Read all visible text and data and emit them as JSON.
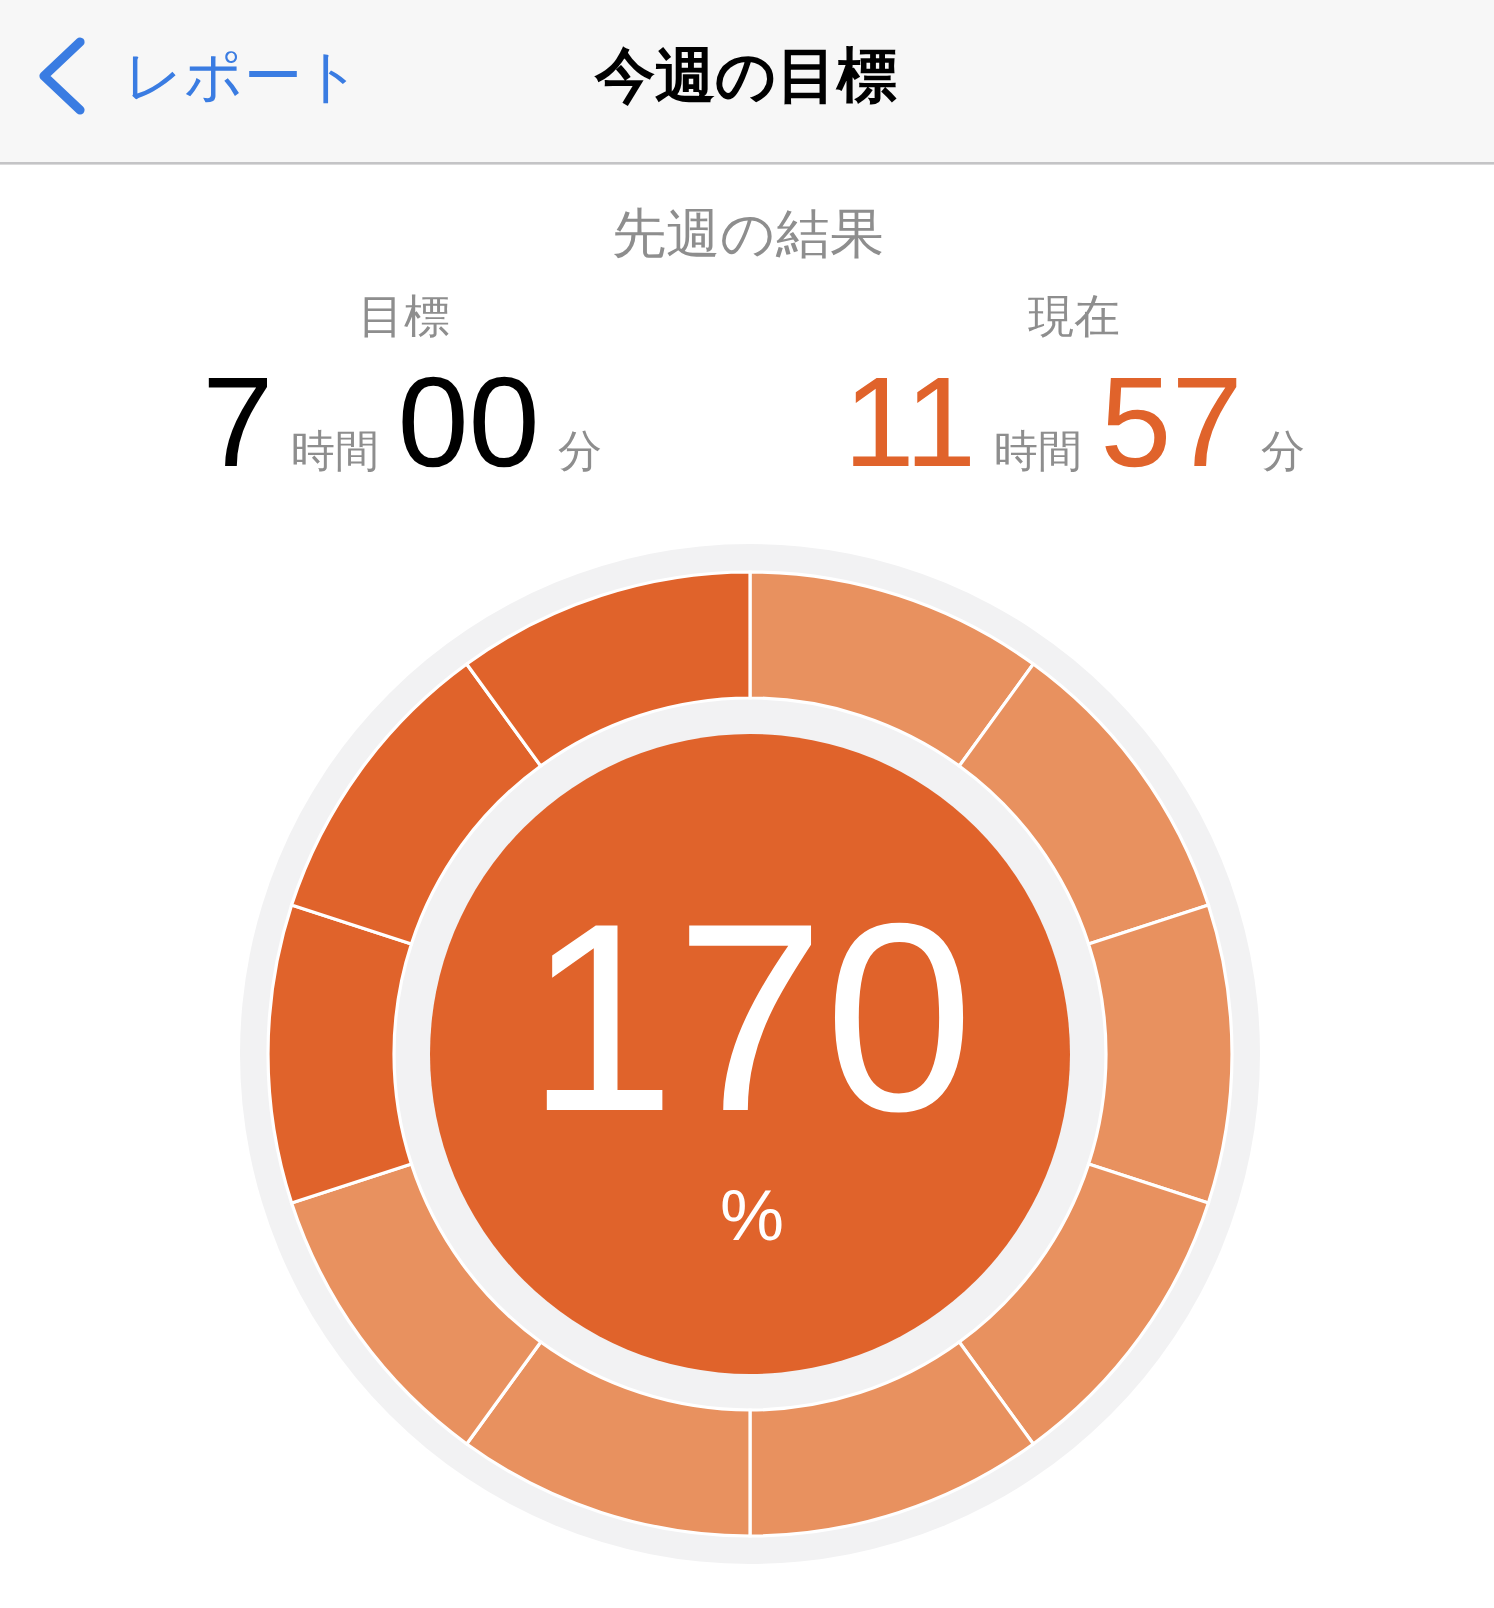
{
  "chart_data": {
    "type": "donut",
    "title": "今週の目標",
    "subtitle": "先週の結果",
    "categories": [
      null,
      null,
      null,
      null,
      null,
      null,
      null,
      null,
      null,
      null
    ],
    "values": [
      10,
      10,
      10,
      10,
      10,
      10,
      10,
      10,
      10,
      10
    ],
    "colors": [
      "#e8915f",
      "#e8915f",
      "#e8915f",
      "#e8915f",
      "#e8915f",
      "#e8915f",
      "#e8915f",
      "#e0632b",
      "#e0632b",
      "#e0632b"
    ],
    "annotations": [
      "レポート",
      "目標",
      "7",
      "時間",
      "00",
      "分",
      "現在",
      "11",
      "時間",
      "57",
      "分",
      "170",
      "%"
    ]
  }
}
